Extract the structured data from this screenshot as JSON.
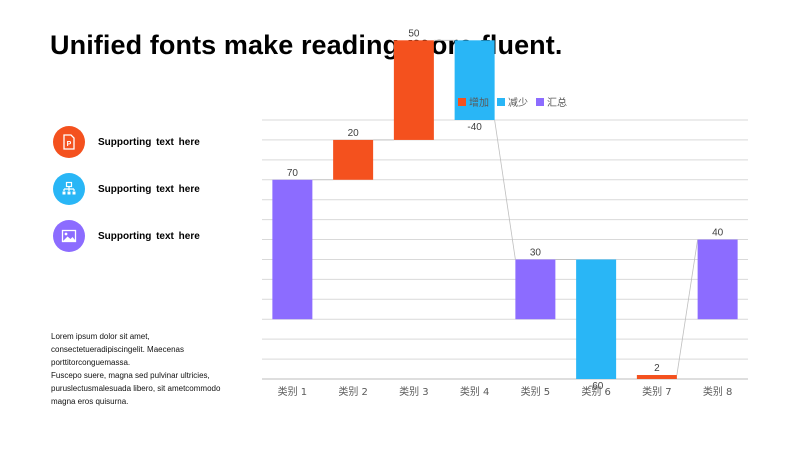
{
  "title": "Unified fonts make reading more fluent.",
  "features": [
    {
      "label": "Supporting  text here",
      "icon": "powerpoint-file-icon",
      "color": "#F4511E"
    },
    {
      "label": "Supporting  text here",
      "icon": "org-chart-icon",
      "color": "#29B6F6"
    },
    {
      "label": "Supporting  text here",
      "icon": "image-icon",
      "color": "#8C6CFF"
    }
  ],
  "body_lines": [
    "Lorem ipsum dolor sit amet,",
    "consectetueradipiscingelit.  Maecenas",
    "porttitorconguemassa.",
    "Fuscepo suere, magna sed pulvinar ultricies,",
    "puruslectusmalesuada  libero, sit ametcommodo",
    "magna eros quisurna."
  ],
  "chart_data": {
    "type": "waterfall",
    "categories": [
      "类别 1",
      "类别 2",
      "类别 3",
      "类别 4",
      "类别 5",
      "类别 6",
      "类别 7",
      "类别 8"
    ],
    "values": [
      70,
      20,
      50,
      -40,
      30,
      -60,
      2,
      40
    ],
    "kinds": [
      "total",
      "increase",
      "increase",
      "decrease",
      "total",
      "decrease",
      "increase",
      "total"
    ],
    "labels": [
      "70",
      "20",
      "50",
      "-40",
      "30",
      "-60",
      "2",
      "40"
    ],
    "legend": [
      {
        "name": "增加",
        "color": "#F4511E"
      },
      {
        "name": "减少",
        "color": "#29B6F6"
      },
      {
        "name": "汇总",
        "color": "#8C6CFF"
      }
    ],
    "ylim": [
      -30,
      100
    ],
    "grid": true,
    "legend_position": "top"
  }
}
